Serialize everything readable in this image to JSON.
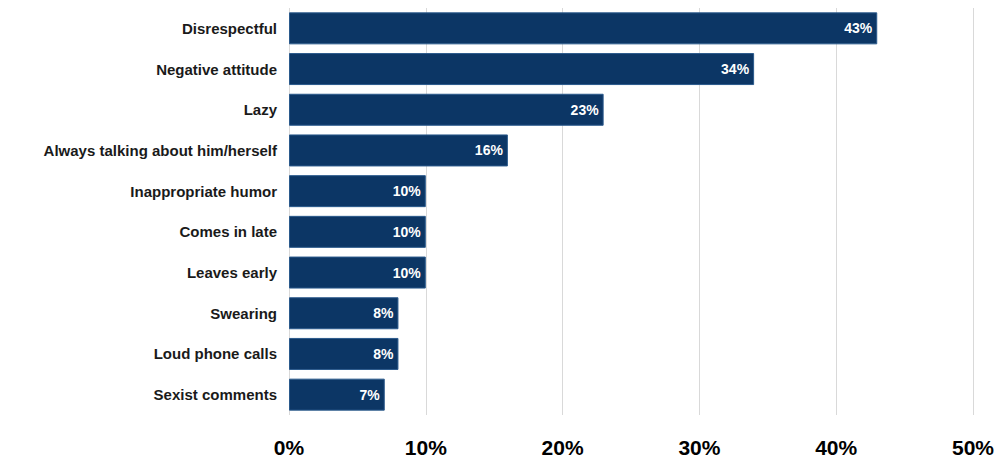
{
  "chart_data": {
    "type": "bar",
    "orientation": "horizontal",
    "categories": [
      "Disrespectful",
      "Negative attitude",
      "Lazy",
      "Always talking about him/herself",
      "Inappropriate humor",
      "Comes in late",
      "Leaves early",
      "Swearing",
      "Loud phone calls",
      "Sexist comments"
    ],
    "values": [
      43,
      34,
      23,
      16,
      10,
      10,
      10,
      8,
      8,
      7
    ],
    "value_labels": [
      "43%",
      "34%",
      "23%",
      "16%",
      "10%",
      "10%",
      "10%",
      "8%",
      "8%",
      "7%"
    ],
    "color": "#0c3665",
    "xlim": [
      0,
      50
    ],
    "xticks": [
      {
        "value": 0,
        "label": "0%"
      },
      {
        "value": 10,
        "label": "10%"
      },
      {
        "value": 20,
        "label": "20%"
      },
      {
        "value": 30,
        "label": "30%"
      },
      {
        "value": 40,
        "label": "40%"
      },
      {
        "value": 50,
        "label": "50%"
      }
    ],
    "grid": true,
    "data_labels": true
  }
}
